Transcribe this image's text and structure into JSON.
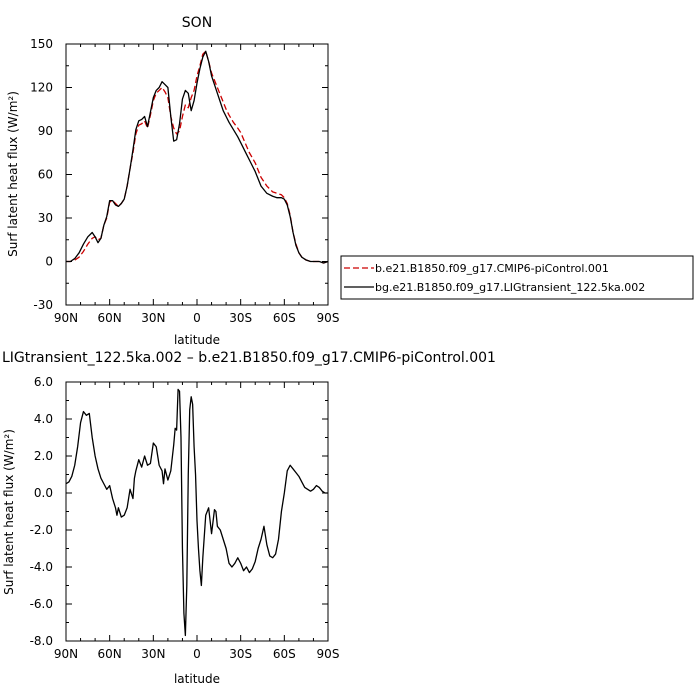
{
  "chart_data": [
    {
      "type": "line",
      "title": "SON",
      "xlabel": "latitude",
      "ylabel": "Surf latent heat flux (W/m²)",
      "xlim": [
        90,
        -90
      ],
      "ylim": [
        -30,
        150
      ],
      "xticks": [
        90,
        60,
        30,
        0,
        -30,
        -60,
        -90
      ],
      "xtick_labels": [
        "90N",
        "60N",
        "30N",
        "0",
        "30S",
        "60S",
        "90S"
      ],
      "yticks": [
        -30,
        0,
        30,
        60,
        90,
        120,
        150
      ],
      "ytick_labels": [
        "-30",
        "0",
        "30",
        "60",
        "90",
        "120",
        "150"
      ],
      "legend_position": "outside-right",
      "series": [
        {
          "name": "b.e21.B1850.f09_g17.CMIP6-piControl.001",
          "color": "#cc0000",
          "dash": "dashed",
          "x": [
            90,
            87,
            84,
            81,
            78,
            75,
            72,
            70,
            68,
            66,
            64,
            62,
            60,
            58,
            56,
            54,
            52,
            50,
            48,
            46,
            44,
            42,
            40,
            38,
            36,
            34,
            32,
            30,
            28,
            26,
            24,
            22,
            20,
            18,
            16,
            14,
            12,
            10,
            8,
            6,
            4,
            2,
            0,
            -2,
            -4,
            -6,
            -8,
            -10,
            -12,
            -14,
            -16,
            -18,
            -20,
            -22,
            -25,
            -28,
            -30,
            -33,
            -36,
            -40,
            -44,
            -48,
            -52,
            -55,
            -58,
            -60,
            -62,
            -64,
            -66,
            -68,
            -70,
            -72,
            -75,
            -78,
            -81,
            -84,
            -87,
            -90
          ],
          "values": [
            0,
            0,
            1,
            3,
            7,
            12,
            16,
            17,
            15,
            16,
            25,
            30,
            41,
            42,
            40,
            38,
            40,
            43,
            52,
            64,
            75,
            88,
            94,
            95,
            97,
            92,
            101,
            111,
            116,
            118,
            120,
            117,
            113,
            100,
            92,
            88,
            90,
            100,
            108,
            106,
            113,
            118,
            128,
            135,
            143,
            145,
            138,
            130,
            125,
            120,
            115,
            110,
            105,
            101,
            96,
            92,
            89,
            82,
            75,
            68,
            58,
            52,
            48,
            47,
            46,
            44,
            40,
            32,
            20,
            12,
            6,
            3,
            1,
            0,
            0,
            0,
            -1,
            0
          ]
        },
        {
          "name": "bg.e21.B1850.f09_g17.LIGtransient_122.5ka.002",
          "color": "#000000",
          "dash": "solid",
          "x": [
            90,
            87,
            84,
            81,
            78,
            75,
            72,
            70,
            68,
            66,
            64,
            62,
            60,
            58,
            56,
            54,
            52,
            50,
            48,
            46,
            44,
            42,
            40,
            38,
            36,
            34,
            32,
            30,
            28,
            26,
            24,
            22,
            20,
            18,
            16,
            14,
            12,
            10,
            8,
            6,
            4,
            2,
            0,
            -2,
            -4,
            -6,
            -8,
            -10,
            -12,
            -14,
            -16,
            -18,
            -20,
            -22,
            -25,
            -28,
            -30,
            -33,
            -36,
            -40,
            -44,
            -48,
            -52,
            -55,
            -58,
            -60,
            -62,
            -64,
            -66,
            -68,
            -70,
            -72,
            -75,
            -78,
            -81,
            -84,
            -87,
            -90
          ],
          "values": [
            0,
            0,
            2,
            6,
            12,
            17,
            20,
            17,
            13,
            16,
            25,
            31,
            42,
            42,
            39,
            38,
            40,
            43,
            52,
            64,
            77,
            91,
            97,
            98,
            100,
            93,
            103,
            113,
            118,
            120,
            124,
            122,
            120,
            100,
            83,
            84,
            95,
            112,
            118,
            116,
            104,
            111,
            123,
            133,
            141,
            145,
            138,
            128,
            122,
            116,
            110,
            104,
            100,
            96,
            91,
            86,
            82,
            76,
            70,
            62,
            52,
            47,
            45,
            44,
            44,
            43,
            39,
            31,
            20,
            11,
            6,
            3,
            1,
            0,
            0,
            0,
            -1,
            0
          ]
        }
      ]
    },
    {
      "type": "line",
      "title": "LIGtransient_122.5ka.002 – b.e21.B1850.f09_g17.CMIP6-piControl.001",
      "xlabel": "latitude",
      "ylabel": "Surf latent heat flux (W/m²)",
      "xlim": [
        90,
        -90
      ],
      "ylim": [
        -8,
        6
      ],
      "xticks": [
        90,
        60,
        30,
        0,
        -30,
        -60,
        -90
      ],
      "xtick_labels": [
        "90N",
        "60N",
        "30N",
        "0",
        "30S",
        "60S",
        "90S"
      ],
      "yticks": [
        -8,
        -6,
        -4,
        -2,
        0,
        2,
        4,
        6
      ],
      "ytick_labels": [
        "-8.0",
        "-6.0",
        "-4.0",
        "-2.0",
        "0.0",
        "2.0",
        "4.0",
        "6.0"
      ],
      "series": [
        {
          "color": "#000000",
          "dash": "solid",
          "x": [
            90,
            88,
            86,
            84,
            82,
            80,
            78,
            76,
            74,
            72,
            70,
            68,
            66,
            64,
            62,
            60,
            58,
            56,
            55,
            54,
            52,
            50,
            48,
            46,
            44,
            43,
            42,
            40,
            38,
            36,
            34,
            32,
            30,
            28,
            27,
            26,
            24,
            23,
            22,
            20,
            18,
            16,
            15,
            14,
            13,
            12,
            11,
            10,
            9,
            8,
            7,
            6,
            5,
            4,
            3,
            2,
            1,
            0,
            -1,
            -2,
            -3,
            -4,
            -6,
            -8,
            -10,
            -12,
            -13,
            -14,
            -16,
            -18,
            -20,
            -22,
            -24,
            -26,
            -28,
            -30,
            -32,
            -34,
            -36,
            -38,
            -40,
            -42,
            -44,
            -46,
            -48,
            -50,
            -52,
            -54,
            -56,
            -58,
            -60,
            -62,
            -64,
            -66,
            -68,
            -70,
            -72,
            -74,
            -76,
            -78,
            -80,
            -82,
            -84,
            -86,
            -88,
            -90
          ],
          "values": [
            0.5,
            0.6,
            0.9,
            1.5,
            2.5,
            3.8,
            4.4,
            4.2,
            4.3,
            3.0,
            2.0,
            1.3,
            0.8,
            0.5,
            0.2,
            0.4,
            -0.3,
            -0.8,
            -1.2,
            -0.8,
            -1.3,
            -1.2,
            -0.8,
            0.2,
            -0.3,
            0.8,
            1.2,
            1.8,
            1.4,
            2.0,
            1.5,
            1.6,
            2.7,
            2.5,
            2.0,
            1.5,
            1.2,
            0.5,
            1.3,
            0.7,
            1.2,
            2.6,
            3.5,
            3.4,
            5.6,
            5.5,
            3.0,
            -3.0,
            -6.5,
            -7.7,
            -5.0,
            1.0,
            4.5,
            5.2,
            4.8,
            2.5,
            1.0,
            -1.5,
            -3.0,
            -4.2,
            -5.0,
            -3.5,
            -1.2,
            -0.8,
            -2.2,
            -0.9,
            -1.0,
            -1.8,
            -2.0,
            -2.5,
            -3.0,
            -3.8,
            -4.0,
            -3.8,
            -3.5,
            -3.8,
            -4.2,
            -4.0,
            -4.3,
            -4.1,
            -3.7,
            -3.0,
            -2.5,
            -1.8,
            -2.8,
            -3.4,
            -3.5,
            -3.3,
            -2.5,
            -1.0,
            0.0,
            1.2,
            1.5,
            1.3,
            1.1,
            0.9,
            0.6,
            0.3,
            0.2,
            0.1,
            0.2,
            0.4,
            0.3,
            0.1,
            0.0,
            0.0
          ]
        }
      ]
    }
  ]
}
